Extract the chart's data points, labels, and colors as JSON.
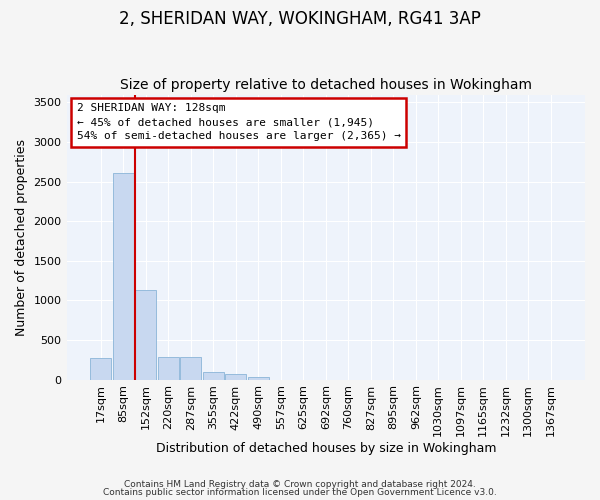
{
  "title": "2, SHERIDAN WAY, WOKINGHAM, RG41 3AP",
  "subtitle": "Size of property relative to detached houses in Wokingham",
  "xlabel": "Distribution of detached houses by size in Wokingham",
  "ylabel": "Number of detached properties",
  "categories": [
    "17sqm",
    "85sqm",
    "152sqm",
    "220sqm",
    "287sqm",
    "355sqm",
    "422sqm",
    "490sqm",
    "557sqm",
    "625sqm",
    "692sqm",
    "760sqm",
    "827sqm",
    "895sqm",
    "962sqm",
    "1030sqm",
    "1097sqm",
    "1165sqm",
    "1232sqm",
    "1300sqm",
    "1367sqm"
  ],
  "values": [
    270,
    2610,
    1130,
    285,
    285,
    100,
    65,
    35,
    0,
    0,
    0,
    0,
    0,
    0,
    0,
    0,
    0,
    0,
    0,
    0,
    0
  ],
  "bar_color": "#c8d8f0",
  "bar_edge_color": "#8ab4d8",
  "property_line_x": 1.5,
  "annotation_text_line1": "2 SHERIDAN WAY: 128sqm",
  "annotation_text_line2": "← 45% of detached houses are smaller (1,945)",
  "annotation_text_line3": "54% of semi-detached houses are larger (2,365) →",
  "annotation_box_color": "#ffffff",
  "annotation_box_edge_color": "#cc0000",
  "ylim": [
    0,
    3600
  ],
  "yticks": [
    0,
    500,
    1000,
    1500,
    2000,
    2500,
    3000,
    3500
  ],
  "title_fontsize": 12,
  "subtitle_fontsize": 10,
  "axis_fontsize": 9,
  "tick_fontsize": 8,
  "footer_line1": "Contains HM Land Registry data © Crown copyright and database right 2024.",
  "footer_line2": "Contains public sector information licensed under the Open Government Licence v3.0.",
  "background_color": "#f5f5f5",
  "plot_background_color": "#eef3fb",
  "grid_color": "#ffffff"
}
